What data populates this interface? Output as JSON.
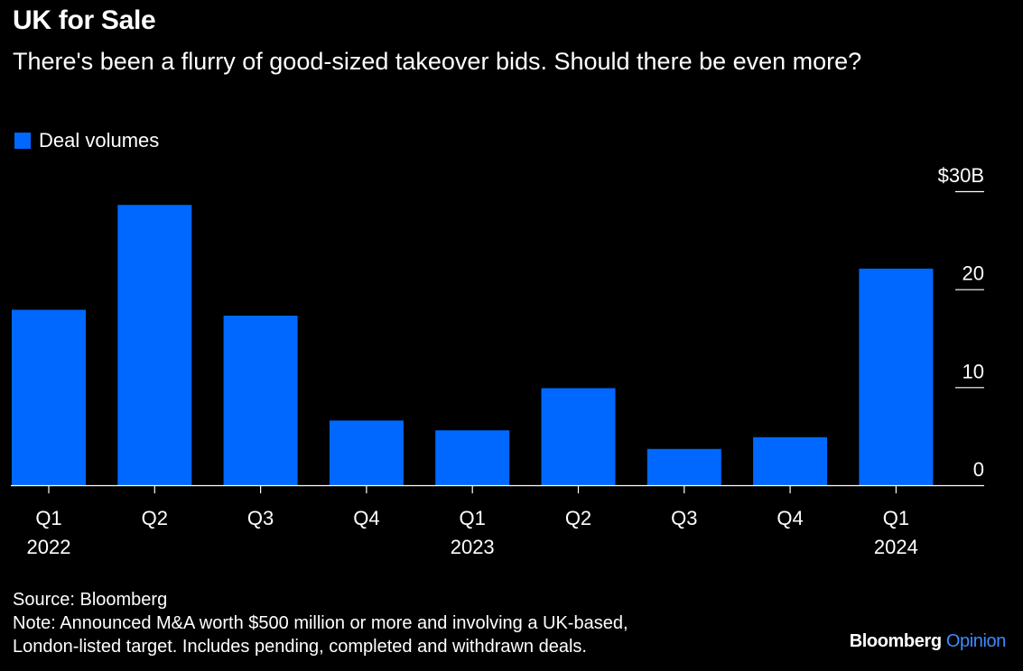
{
  "colors": {
    "background": "#000000",
    "bar": "#0068ff",
    "text": "#ffffff",
    "brand_accent": "#3d8bff"
  },
  "header": {
    "title": "UK for Sale",
    "subtitle": "There's been a flurry of good-sized takeover bids. Should there be even more?"
  },
  "chart_data": {
    "type": "bar",
    "categories": [
      "Q1",
      "Q2",
      "Q3",
      "Q4",
      "Q1",
      "Q2",
      "Q3",
      "Q4",
      "Q1"
    ],
    "years": [
      "2022",
      "",
      "",
      "",
      "2023",
      "",
      "",
      "",
      "2024"
    ],
    "series": [
      {
        "name": "Deal volumes",
        "values": [
          17.9,
          28.6,
          17.3,
          6.6,
          5.6,
          9.9,
          3.7,
          4.9,
          22.1
        ]
      }
    ],
    "ylim": [
      0,
      30
    ],
    "yticks": [
      {
        "value": 0,
        "label": "0"
      },
      {
        "value": 10,
        "label": "10"
      },
      {
        "value": 20,
        "label": "20"
      },
      {
        "value": 30,
        "label": "$30B"
      }
    ],
    "grid": false,
    "legend": "top-left"
  },
  "footer": {
    "source": "Source: Bloomberg",
    "note_line1": "Note: Announced M&A worth $500 million or more and involving a UK-based,",
    "note_line2": "London-listed target. Includes pending, completed and withdrawn deals."
  },
  "brand": {
    "name": "Bloomberg",
    "product": "Opinion"
  }
}
